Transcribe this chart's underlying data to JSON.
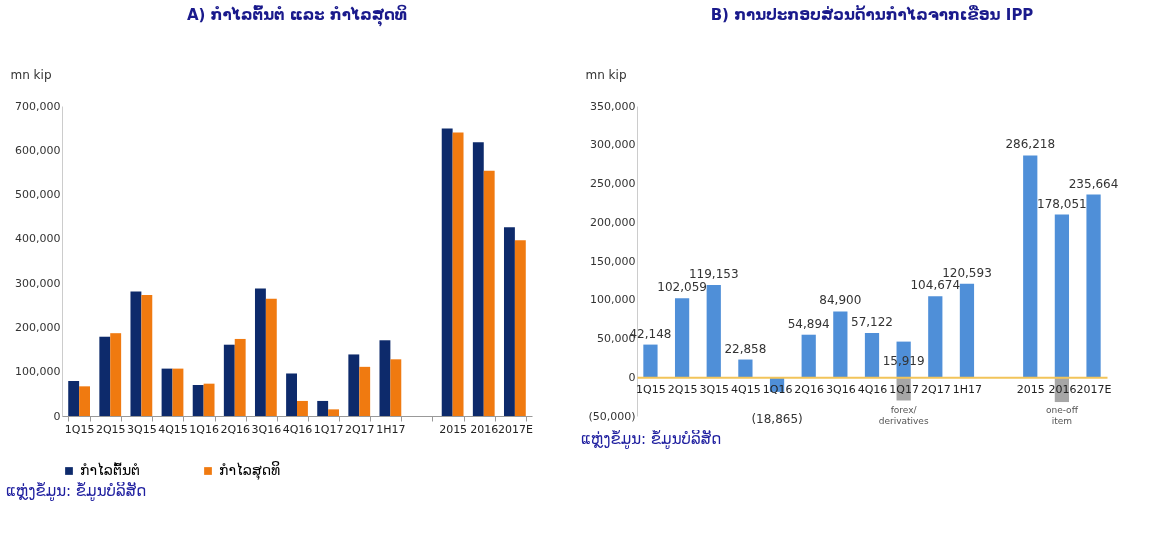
{
  "chart_data": [
    {
      "type": "bar",
      "title": "A)    ກຳໄລຕົ້ນຕໍ ແລະ ກຳໄລສຸດທິ",
      "ylabel": "mn kip",
      "categories": [
        "1Q15",
        "2Q15",
        "3Q15",
        "4Q15",
        "1Q16",
        "2Q16",
        "3Q16",
        "4Q16",
        "1Q17",
        "2Q17",
        "1H17",
        null,
        "2015",
        "2016",
        "2017E"
      ],
      "series": [
        {
          "name": "ກຳໄລຕົ້ນຕໍ",
          "color": "#0d2a6b",
          "values": [
            79000,
            179000,
            281000,
            107000,
            70000,
            161000,
            288000,
            96000,
            34000,
            139000,
            171000,
            null,
            649000,
            618000,
            426000
          ]
        },
        {
          "name": "ກຳໄລສຸດທິ",
          "color": "#f07a10",
          "values": [
            67000,
            187000,
            273000,
            107000,
            73000,
            174000,
            265000,
            34000,
            15000,
            111000,
            128000,
            null,
            640000,
            554000,
            397000
          ]
        }
      ],
      "ylim": [
        0,
        700000
      ],
      "yticks": [
        0,
        {
          "value": 100000,
          "label": "100,000"
        },
        {
          "value": 200000,
          "label": "200,000"
        },
        {
          "value": 300000,
          "label": "300,000"
        },
        {
          "value": 400000,
          "label": "400,000"
        },
        {
          "value": 500000,
          "label": "500,000"
        },
        {
          "value": 600000,
          "label": "600,000"
        },
        {
          "value": 700000,
          "label": "700,000"
        }
      ],
      "legend": "bottom",
      "annotations": [
        "ແຫຼ່ງຂໍ້ມູນ: ຂໍ້ມູນບໍລິສັດ"
      ]
    },
    {
      "type": "bar",
      "title": "B)    ການປະກອບສ່ວນດ້ານກຳໄລຈາກເຂື່ອນ IPP",
      "ylabel": "mn kip",
      "categories": [
        "1Q15",
        "2Q15",
        "3Q15",
        "4Q15",
        "1Q16",
        "2Q16",
        "3Q16",
        "4Q16",
        "1Q17",
        "2Q17",
        "1H17",
        null,
        "2015",
        "2016",
        "2017E"
      ],
      "stacked": true,
      "series": [
        {
          "color": "#4f8fd8",
          "values": [
            42148,
            102059,
            119153,
            22858,
            -18865,
            54894,
            84900,
            57122,
            46000,
            104674,
            120593,
            null,
            286218,
            210000,
            235664
          ],
          "value_labels": [
            "42,148",
            "102,059",
            "119,153",
            "22,858",
            "(18,865)",
            "54,894",
            "84,900",
            "57,122",
            null,
            "104,674",
            "120,593",
            null,
            "286,218",
            null,
            "235,664"
          ]
        },
        {
          "color": "#a6a6a6",
          "values": [
            null,
            null,
            null,
            null,
            null,
            null,
            null,
            null,
            -30000,
            null,
            null,
            null,
            null,
            -32000,
            null
          ]
        }
      ],
      "ylim": [
        -50000,
        350000
      ],
      "yticks": [
        {
          "value": -50000,
          "label": "(50,000)"
        },
        0,
        {
          "value": 50000,
          "label": "50,000"
        },
        {
          "value": 100000,
          "label": "100,000"
        },
        {
          "value": 150000,
          "label": "150,000"
        },
        {
          "value": 200000,
          "label": "200,000"
        },
        {
          "value": 250000,
          "label": "250,000"
        },
        {
          "value": 300000,
          "label": "300,000"
        },
        {
          "value": 350000,
          "label": "350,000"
        }
      ],
      "annotations": [
        "15,919",
        "178,051",
        "forex/ derivatives",
        "one-off item",
        "ແຫຼ່ງຂໍ້ມູນ: ຂໍ້ມູນບໍລິສັດ"
      ]
    }
  ]
}
